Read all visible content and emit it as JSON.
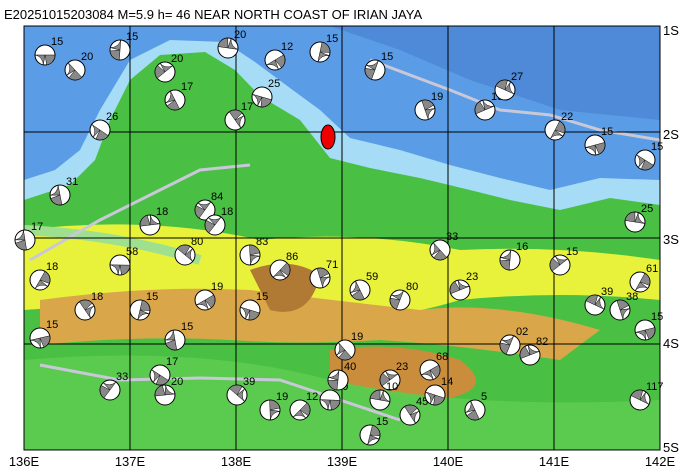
{
  "header": {
    "title": "E20251015203084 M=5.9 h= 46 NEAR NORTH COAST OF IRIAN JAYA"
  },
  "lat_labels": [
    "1S",
    "2S",
    "3S",
    "4S",
    "5S"
  ],
  "lon_labels": [
    "136E",
    "137E",
    "138E",
    "139E",
    "140E",
    "141E",
    "142E"
  ],
  "events": [
    {
      "depth": "15"
    },
    {
      "depth": "20"
    },
    {
      "depth": "15"
    },
    {
      "depth": "20"
    },
    {
      "depth": "20"
    },
    {
      "depth": "17"
    },
    {
      "depth": "15"
    },
    {
      "depth": "12"
    },
    {
      "depth": "25"
    },
    {
      "depth": "17"
    },
    {
      "depth": "15"
    },
    {
      "depth": "15"
    },
    {
      "depth": "27"
    },
    {
      "depth": "19"
    },
    {
      "depth": "22"
    },
    {
      "depth": "15"
    },
    {
      "depth": "15"
    },
    {
      "depth": "31"
    },
    {
      "depth": "84"
    },
    {
      "depth": "18"
    },
    {
      "depth": "80"
    },
    {
      "depth": "83"
    },
    {
      "depth": "86"
    },
    {
      "depth": "58"
    },
    {
      "depth": "33"
    },
    {
      "depth": "16"
    },
    {
      "depth": "15"
    },
    {
      "depth": "25"
    },
    {
      "depth": "18"
    },
    {
      "depth": "15"
    },
    {
      "depth": "19"
    },
    {
      "depth": "15"
    },
    {
      "depth": "59"
    },
    {
      "depth": "80"
    },
    {
      "depth": "23"
    },
    {
      "depth": "39"
    },
    {
      "depth": "38"
    },
    {
      "depth": "61"
    },
    {
      "depth": "15"
    },
    {
      "depth": "17"
    },
    {
      "depth": "15"
    },
    {
      "depth": "33"
    },
    {
      "depth": "20"
    },
    {
      "depth": "39"
    },
    {
      "depth": "19"
    },
    {
      "depth": "12"
    },
    {
      "depth": "30"
    },
    {
      "depth": "19"
    },
    {
      "depth": "40"
    },
    {
      "depth": "23"
    },
    {
      "depth": "10"
    },
    {
      "depth": "45"
    },
    {
      "depth": "15"
    },
    {
      "depth": "68"
    },
    {
      "depth": "14"
    },
    {
      "depth": "5"
    },
    {
      "depth": "02"
    },
    {
      "depth": "82"
    },
    {
      "depth": "117"
    },
    {
      "depth": "71"
    },
    {
      "depth": "18"
    },
    {
      "depth": "15"
    },
    {
      "depth": "26"
    },
    {
      "depth": "17"
    },
    {
      "depth": "18"
    }
  ]
}
